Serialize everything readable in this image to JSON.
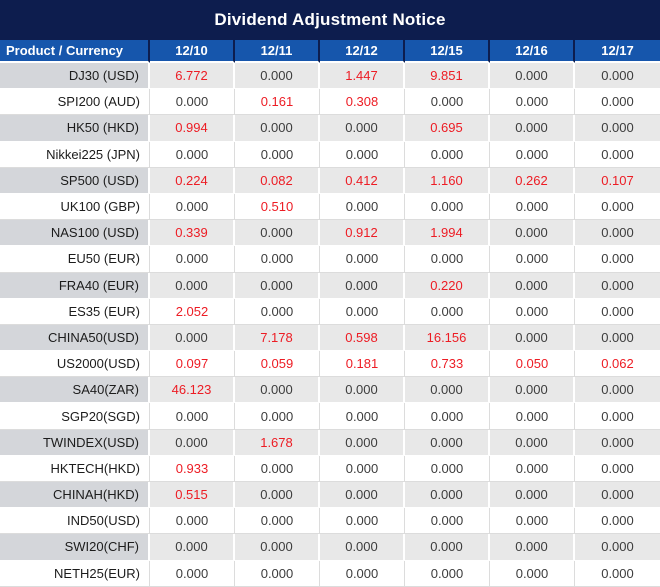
{
  "colors": {
    "title_bg": "#0d1d4e",
    "header_bg": "#1656ac",
    "header_text": "#ffffff",
    "gray_label_bg": "#d4d6da",
    "gray_value_bg": "#e8e8e8",
    "white_row_bg": "#ffffff",
    "border_light": "#dcdcdc",
    "value_text": "#3d3d3d",
    "product_text": "#1c1c1c",
    "red_value": "#ed1c24"
  },
  "chart_data": {
    "type": "table",
    "title": "Dividend Adjustment Notice",
    "columns": [
      "Product / Currency",
      "12/10",
      "12/11",
      "12/12",
      "12/15",
      "12/16",
      "12/17"
    ],
    "rows": [
      {
        "product": "DJ30 (USD)",
        "values": [
          "6.772",
          "0.000",
          "1.447",
          "9.851",
          "0.000",
          "0.000"
        ]
      },
      {
        "product": "SPI200 (AUD)",
        "values": [
          "0.000",
          "0.161",
          "0.308",
          "0.000",
          "0.000",
          "0.000"
        ]
      },
      {
        "product": "HK50 (HKD)",
        "values": [
          "0.994",
          "0.000",
          "0.000",
          "0.695",
          "0.000",
          "0.000"
        ]
      },
      {
        "product": "Nikkei225 (JPN)",
        "values": [
          "0.000",
          "0.000",
          "0.000",
          "0.000",
          "0.000",
          "0.000"
        ]
      },
      {
        "product": "SP500 (USD)",
        "values": [
          "0.224",
          "0.082",
          "0.412",
          "1.160",
          "0.262",
          "0.107"
        ]
      },
      {
        "product": "UK100 (GBP)",
        "values": [
          "0.000",
          "0.510",
          "0.000",
          "0.000",
          "0.000",
          "0.000"
        ]
      },
      {
        "product": "NAS100 (USD)",
        "values": [
          "0.339",
          "0.000",
          "0.912",
          "1.994",
          "0.000",
          "0.000"
        ]
      },
      {
        "product": "EU50 (EUR)",
        "values": [
          "0.000",
          "0.000",
          "0.000",
          "0.000",
          "0.000",
          "0.000"
        ]
      },
      {
        "product": "FRA40 (EUR)",
        "values": [
          "0.000",
          "0.000",
          "0.000",
          "0.220",
          "0.000",
          "0.000"
        ]
      },
      {
        "product": "ES35 (EUR)",
        "values": [
          "2.052",
          "0.000",
          "0.000",
          "0.000",
          "0.000",
          "0.000"
        ]
      },
      {
        "product": "CHINA50(USD)",
        "values": [
          "0.000",
          "7.178",
          "0.598",
          "16.156",
          "0.000",
          "0.000"
        ]
      },
      {
        "product": "US2000(USD)",
        "values": [
          "0.097",
          "0.059",
          "0.181",
          "0.733",
          "0.050",
          "0.062"
        ]
      },
      {
        "product": "SA40(ZAR)",
        "values": [
          "46.123",
          "0.000",
          "0.000",
          "0.000",
          "0.000",
          "0.000"
        ]
      },
      {
        "product": "SGP20(SGD)",
        "values": [
          "0.000",
          "0.000",
          "0.000",
          "0.000",
          "0.000",
          "0.000"
        ]
      },
      {
        "product": "TWINDEX(USD)",
        "values": [
          "0.000",
          "1.678",
          "0.000",
          "0.000",
          "0.000",
          "0.000"
        ]
      },
      {
        "product": "HKTECH(HKD)",
        "values": [
          "0.933",
          "0.000",
          "0.000",
          "0.000",
          "0.000",
          "0.000"
        ]
      },
      {
        "product": "CHINAH(HKD)",
        "values": [
          "0.515",
          "0.000",
          "0.000",
          "0.000",
          "0.000",
          "0.000"
        ]
      },
      {
        "product": "IND50(USD)",
        "values": [
          "0.000",
          "0.000",
          "0.000",
          "0.000",
          "0.000",
          "0.000"
        ]
      },
      {
        "product": "SWI20(CHF)",
        "values": [
          "0.000",
          "0.000",
          "0.000",
          "0.000",
          "0.000",
          "0.000"
        ]
      },
      {
        "product": "NETH25(EUR)",
        "values": [
          "0.000",
          "0.000",
          "0.000",
          "0.000",
          "0.000",
          "0.000"
        ]
      }
    ]
  }
}
